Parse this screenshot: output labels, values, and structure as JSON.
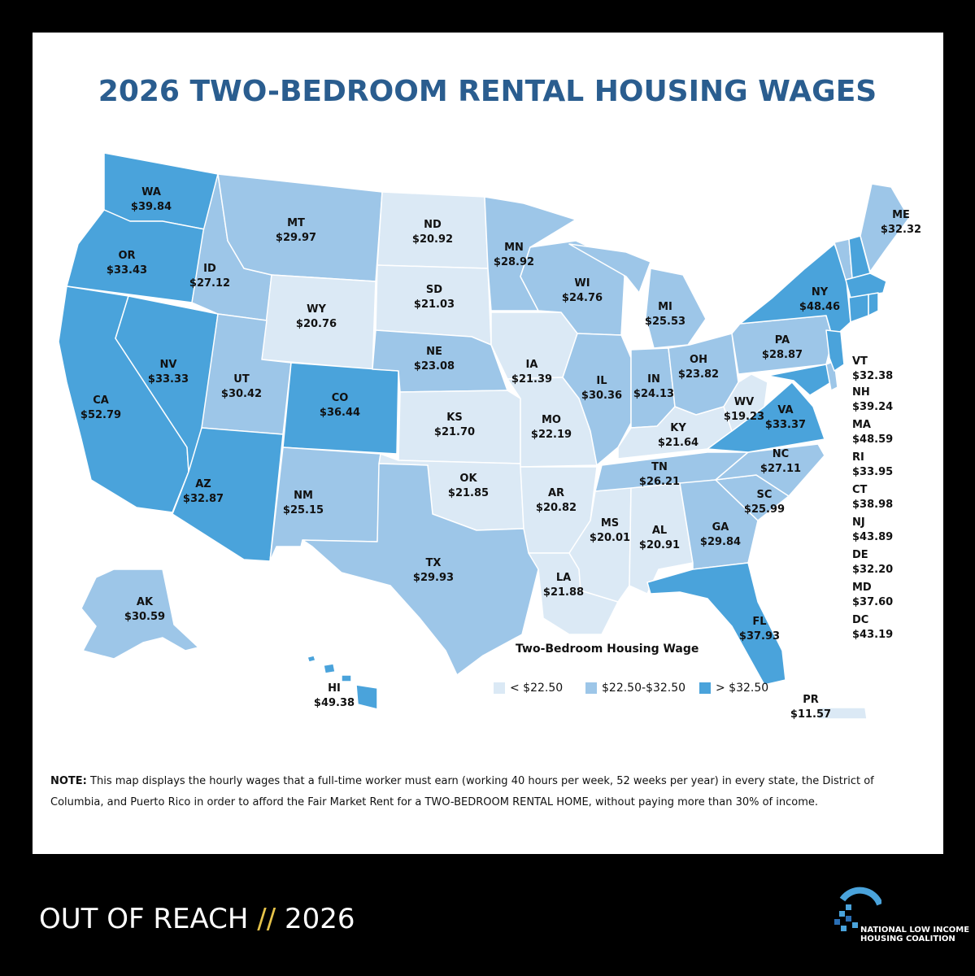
{
  "title": "2026 TWO-BEDROOM RENTAL HOUSING WAGES",
  "colors": {
    "low": "#dbe9f5",
    "mid": "#9dc6e8",
    "high": "#4aa3db",
    "title": "#2a5d8f",
    "footer_accent": "#e6c34a"
  },
  "legend": {
    "title": "Two-Bedroom Housing Wage",
    "items": [
      {
        "label": "< $22.50",
        "color_key": "low"
      },
      {
        "label": "$22.50-$32.50",
        "color_key": "mid"
      },
      {
        "label": "> $32.50",
        "color_key": "high"
      }
    ]
  },
  "states": {
    "WA": {
      "abbr": "WA",
      "wage": "$39.84",
      "tier": "high"
    },
    "OR": {
      "abbr": "OR",
      "wage": "$33.43",
      "tier": "high"
    },
    "CA": {
      "abbr": "CA",
      "wage": "$52.79",
      "tier": "high"
    },
    "NV": {
      "abbr": "NV",
      "wage": "$33.33",
      "tier": "high"
    },
    "ID": {
      "abbr": "ID",
      "wage": "$27.12",
      "tier": "mid"
    },
    "MT": {
      "abbr": "MT",
      "wage": "$29.97",
      "tier": "mid"
    },
    "WY": {
      "abbr": "WY",
      "wage": "$20.76",
      "tier": "low"
    },
    "UT": {
      "abbr": "UT",
      "wage": "$30.42",
      "tier": "mid"
    },
    "AZ": {
      "abbr": "AZ",
      "wage": "$32.87",
      "tier": "high"
    },
    "CO": {
      "abbr": "CO",
      "wage": "$36.44",
      "tier": "high"
    },
    "NM": {
      "abbr": "NM",
      "wage": "$25.15",
      "tier": "mid"
    },
    "ND": {
      "abbr": "ND",
      "wage": "$20.92",
      "tier": "low"
    },
    "SD": {
      "abbr": "SD",
      "wage": "$21.03",
      "tier": "low"
    },
    "NE": {
      "abbr": "NE",
      "wage": "$23.08",
      "tier": "mid"
    },
    "KS": {
      "abbr": "KS",
      "wage": "$21.70",
      "tier": "low"
    },
    "OK": {
      "abbr": "OK",
      "wage": "$21.85",
      "tier": "low"
    },
    "TX": {
      "abbr": "TX",
      "wage": "$29.93",
      "tier": "mid"
    },
    "MN": {
      "abbr": "MN",
      "wage": "$28.92",
      "tier": "mid"
    },
    "IA": {
      "abbr": "IA",
      "wage": "$21.39",
      "tier": "low"
    },
    "MO": {
      "abbr": "MO",
      "wage": "$22.19",
      "tier": "low"
    },
    "AR": {
      "abbr": "AR",
      "wage": "$20.82",
      "tier": "low"
    },
    "LA": {
      "abbr": "LA",
      "wage": "$21.88",
      "tier": "low"
    },
    "WI": {
      "abbr": "WI",
      "wage": "$24.76",
      "tier": "mid"
    },
    "IL": {
      "abbr": "IL",
      "wage": "$30.36",
      "tier": "mid"
    },
    "MI": {
      "abbr": "MI",
      "wage": "$25.53",
      "tier": "mid"
    },
    "IN": {
      "abbr": "IN",
      "wage": "$24.13",
      "tier": "mid"
    },
    "OH": {
      "abbr": "OH",
      "wage": "$23.82",
      "tier": "mid"
    },
    "KY": {
      "abbr": "KY",
      "wage": "$21.64",
      "tier": "low"
    },
    "TN": {
      "abbr": "TN",
      "wage": "$26.21",
      "tier": "mid"
    },
    "MS": {
      "abbr": "MS",
      "wage": "$20.01",
      "tier": "low"
    },
    "AL": {
      "abbr": "AL",
      "wage": "$20.91",
      "tier": "low"
    },
    "GA": {
      "abbr": "GA",
      "wage": "$29.84",
      "tier": "mid"
    },
    "FL": {
      "abbr": "FL",
      "wage": "$37.93",
      "tier": "high"
    },
    "SC": {
      "abbr": "SC",
      "wage": "$25.99",
      "tier": "mid"
    },
    "NC": {
      "abbr": "NC",
      "wage": "$27.11",
      "tier": "mid"
    },
    "VA": {
      "abbr": "VA",
      "wage": "$33.37",
      "tier": "high"
    },
    "WV": {
      "abbr": "WV",
      "wage": "$19.23",
      "tier": "low"
    },
    "PA": {
      "abbr": "PA",
      "wage": "$28.87",
      "tier": "mid"
    },
    "NY": {
      "abbr": "NY",
      "wage": "$48.46",
      "tier": "high"
    },
    "ME": {
      "abbr": "ME",
      "wage": "$32.32",
      "tier": "mid"
    },
    "AK": {
      "abbr": "AK",
      "wage": "$30.59",
      "tier": "mid"
    },
    "HI": {
      "abbr": "HI",
      "wage": "$49.38",
      "tier": "high"
    },
    "PR": {
      "abbr": "PR",
      "wage": "$11.57",
      "tier": "low"
    },
    "VT": {
      "abbr": "VT",
      "wage": "$32.38",
      "tier": "mid"
    },
    "NH": {
      "abbr": "NH",
      "wage": "$39.24",
      "tier": "high"
    },
    "MA": {
      "abbr": "MA",
      "wage": "$48.59",
      "tier": "high"
    },
    "RI": {
      "abbr": "RI",
      "wage": "$33.95",
      "tier": "high"
    },
    "CT": {
      "abbr": "CT",
      "wage": "$38.98",
      "tier": "high"
    },
    "NJ": {
      "abbr": "NJ",
      "wage": "$43.89",
      "tier": "high"
    },
    "DE": {
      "abbr": "DE",
      "wage": "$32.20",
      "tier": "mid"
    },
    "MD": {
      "abbr": "MD",
      "wage": "$37.60",
      "tier": "high"
    },
    "DC": {
      "abbr": "DC",
      "wage": "$43.19",
      "tier": "high"
    }
  },
  "note": {
    "label": "NOTE:",
    "text": " This map displays the hourly wages that a full-time worker must earn (working 40 hours per week, 52 weeks per year) in every state, the District of Columbia, and Puerto Rico in order to afford the Fair Market Rent for a TWO-BEDROOM RENTAL HOME, without paying more than 30% of income."
  },
  "footer": {
    "left": "OUT OF REACH",
    "sep": "//",
    "right": "2026"
  },
  "org": {
    "line1": "NATIONAL LOW INCOME",
    "line2": "HOUSING COALITION"
  }
}
